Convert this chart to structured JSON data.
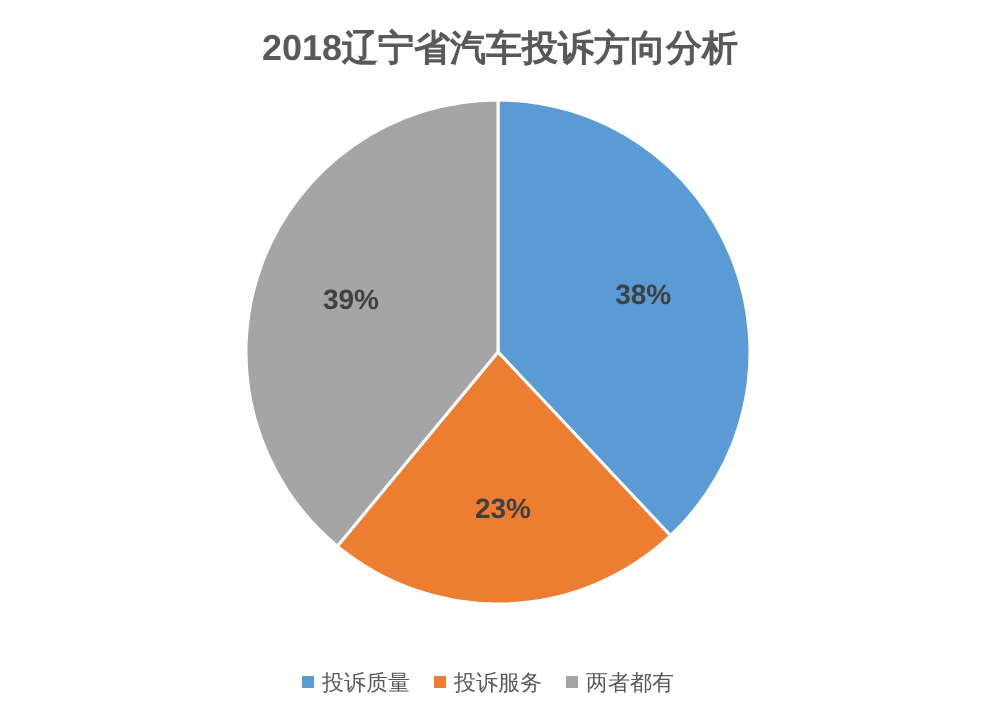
{
  "chart_data": {
    "type": "pie",
    "title": "2018辽宁省汽车投诉方向分析",
    "categories": [
      "投诉质量",
      "投诉服务",
      "两者都有"
    ],
    "values": [
      38,
      23,
      39
    ],
    "colors": [
      "#5b9bd5",
      "#ed7d31",
      "#a5a5a5"
    ],
    "value_labels": [
      "38%",
      "23%",
      "39%"
    ],
    "legend": "bottom"
  }
}
